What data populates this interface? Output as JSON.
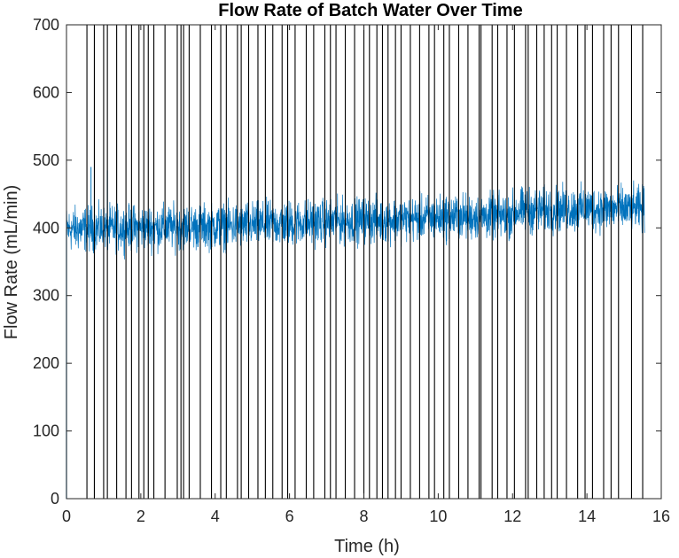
{
  "chart_data": {
    "type": "line",
    "title": "Flow Rate of Batch Water Over Time",
    "xlabel": "Time (h)",
    "ylabel": "Flow Rate (mL/min)",
    "xlim": [
      0,
      16
    ],
    "ylim": [
      0,
      700
    ],
    "x_ticks": [
      0,
      2,
      4,
      6,
      8,
      10,
      12,
      14,
      16
    ],
    "y_ticks": [
      0,
      100,
      200,
      300,
      400,
      500,
      600,
      700
    ],
    "grid": false,
    "box": true,
    "series": [
      {
        "color": "#0072BD",
        "x_range": [
          0,
          15.55
        ],
        "trend_x": [
          0,
          2,
          4,
          6,
          8,
          10,
          11.9,
          12.1,
          14,
          15.55
        ],
        "trend_mean": [
          398,
          400,
          402,
          407,
          411,
          415,
          418,
          425,
          428,
          428
        ],
        "band_halfwidth": 18,
        "spikes": [
          {
            "x": 0.0,
            "y": 360
          },
          {
            "x": 0.66,
            "y": 490
          },
          {
            "x": 1.1,
            "y": 485
          }
        ]
      }
    ],
    "vertical_lines": {
      "color": "#000000",
      "x": [
        0.55,
        0.75,
        1.0,
        1.1,
        1.35,
        1.6,
        1.75,
        1.95,
        2.08,
        2.2,
        2.35,
        2.65,
        2.98,
        3.08,
        3.15,
        3.3,
        3.6,
        3.9,
        4.15,
        4.3,
        4.6,
        4.7,
        4.9,
        5.15,
        5.35,
        5.55,
        5.8,
        5.95,
        6.15,
        6.45,
        6.65,
        6.95,
        7.1,
        7.25,
        7.5,
        7.75,
        8.0,
        8.15,
        8.35,
        8.5,
        8.65,
        8.85,
        9.0,
        9.25,
        9.5,
        9.75,
        9.9,
        10.15,
        10.3,
        10.55,
        10.8,
        11.1,
        11.15,
        11.45,
        11.6,
        11.85,
        12.05,
        12.35,
        12.42,
        12.65,
        12.85,
        13.05,
        13.2,
        13.45,
        13.75,
        13.95,
        14.15,
        14.45,
        14.65,
        14.85,
        15.2,
        15.5
      ]
    }
  }
}
